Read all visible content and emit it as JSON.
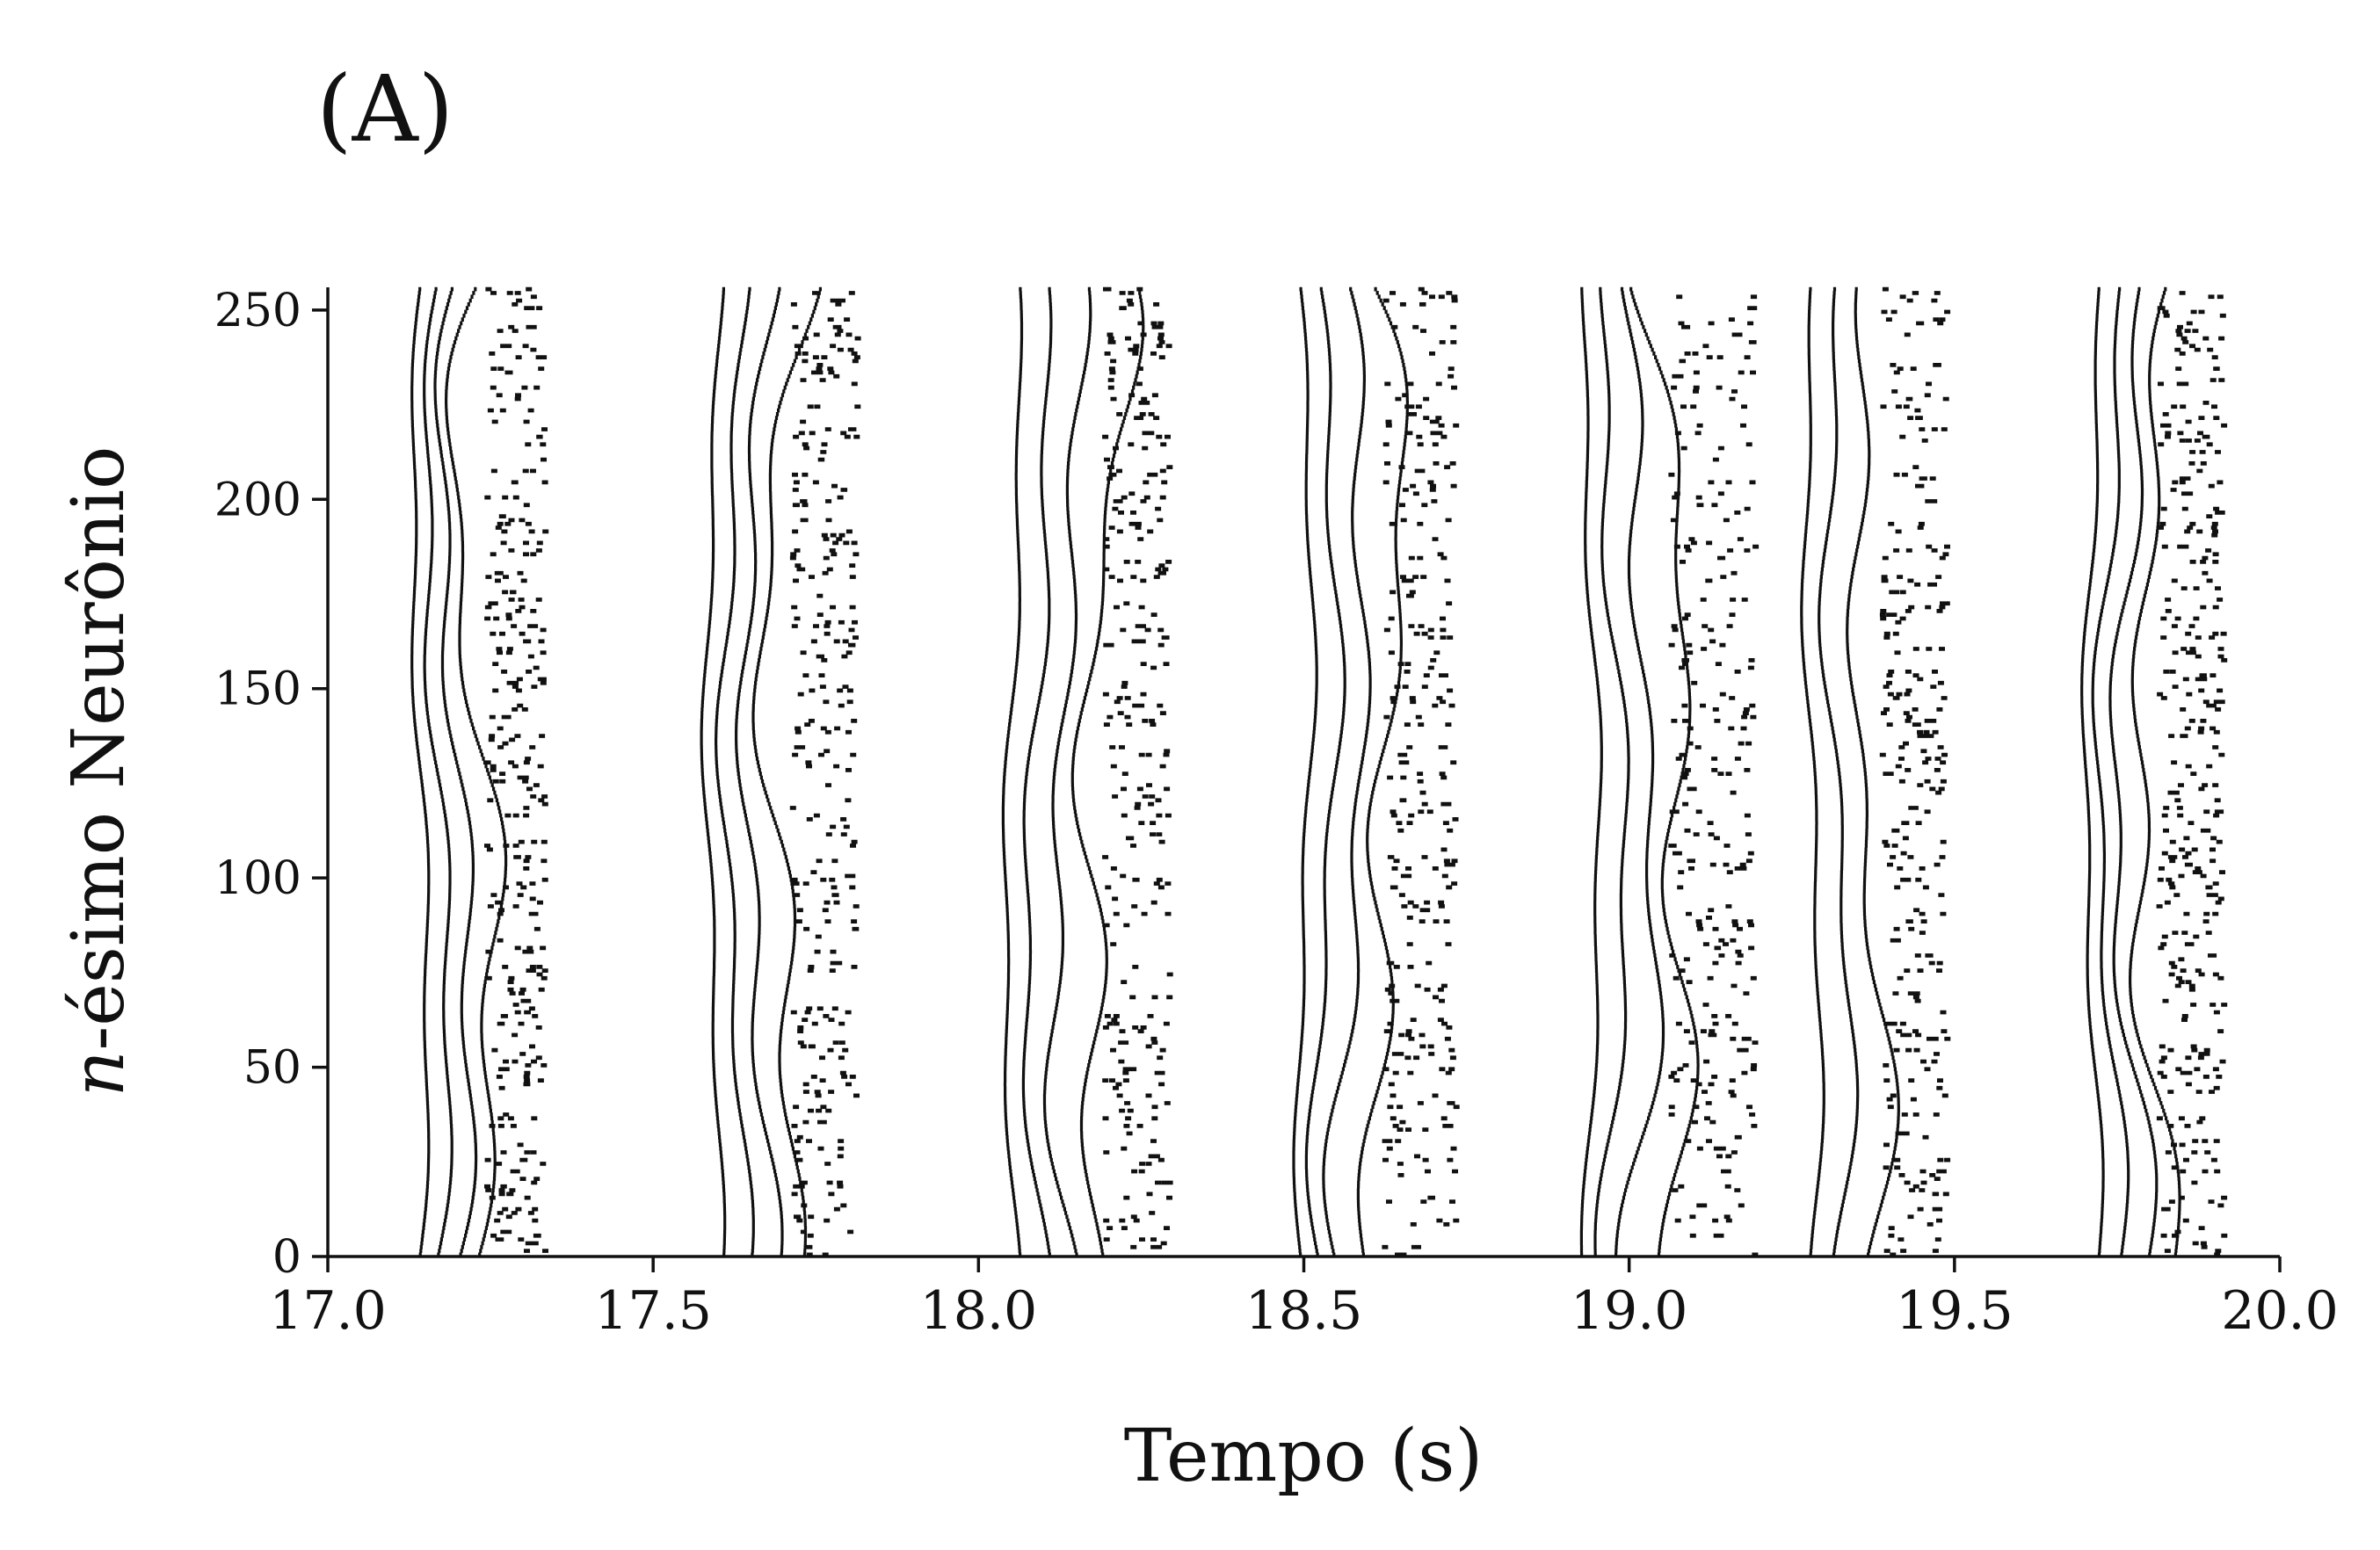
{
  "chart_data": {
    "type": "scatter",
    "subtype": "raster",
    "panel_label": "(A)",
    "xlabel": "Tempo (s)",
    "ylabel_italic": "n",
    "ylabel_rest": "-ésimo Neurônio",
    "xlim": [
      17.0,
      20.0
    ],
    "ylim": [
      0,
      256
    ],
    "xticks": [
      17.0,
      17.5,
      18.0,
      18.5,
      19.0,
      19.5,
      20.0
    ],
    "xtick_labels": [
      "17.0",
      "17.5",
      "18.0",
      "18.5",
      "19.0",
      "19.5",
      "20.0"
    ],
    "yticks": [
      0,
      50,
      100,
      150,
      200,
      250
    ],
    "ytick_labels": [
      "0",
      "50",
      "100",
      "150",
      "200",
      "250"
    ],
    "grid": false,
    "color": "#111111",
    "neurons": 256,
    "bursts": [
      {
        "start": 17.14,
        "spacing": 0.025,
        "spikes": 4,
        "curve": 0.05,
        "scatter": 0.09
      },
      {
        "start": 17.59,
        "spacing": 0.03,
        "spikes": 4,
        "curve": 0.06,
        "scatter": 0.1
      },
      {
        "start": 18.05,
        "spacing": 0.035,
        "spikes": 4,
        "curve": 0.1,
        "scatter": 0.1
      },
      {
        "start": 18.5,
        "spacing": 0.03,
        "spikes": 4,
        "curve": 0.1,
        "scatter": 0.11
      },
      {
        "start": 18.94,
        "spacing": 0.03,
        "spikes": 4,
        "curve": 0.12,
        "scatter": 0.13
      },
      {
        "start": 19.28,
        "spacing": 0.035,
        "spikes": 3,
        "curve": 0.08,
        "scatter": 0.1
      },
      {
        "start": 19.71,
        "spacing": 0.025,
        "spikes": 4,
        "curve": 0.06,
        "scatter": 0.1
      }
    ]
  }
}
